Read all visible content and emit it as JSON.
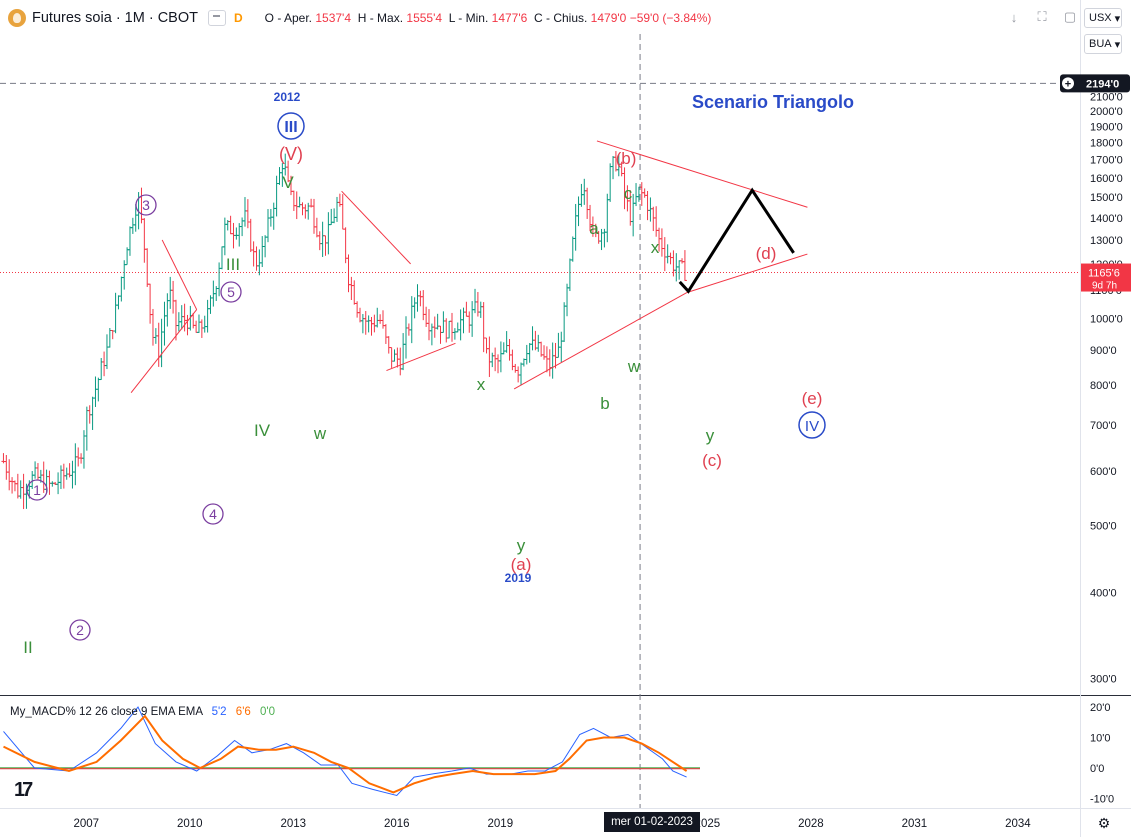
{
  "header": {
    "symbol": "Futures soia · 1M · CBOT",
    "badge_d": "D",
    "ohlc": {
      "open_label": "O - Aper.",
      "open": "1537'4",
      "high_label": "H - Max.",
      "high": "1555'4",
      "low_label": "L - Min.",
      "low": "1477'6",
      "close_label": "C - Chius.",
      "close": "1479'0",
      "change": "−59'0 (−3.84%)"
    },
    "currency": "USX",
    "unit": "BUA"
  },
  "chart_data": {
    "type": "ohlc",
    "title": "Scenario Triangolo",
    "main_chart": {
      "y_tick_labels": [
        "300'0",
        "400'0",
        "500'0",
        "600'0",
        "700'0",
        "800'0",
        "900'0",
        "1000'0",
        "1100'0",
        "1200'0",
        "1300'0",
        "1400'0",
        "1500'0",
        "1600'0",
        "1700'0",
        "1800'0",
        "1900'0",
        "2000'0",
        "2100'0"
      ],
      "price_scale": "log",
      "ylim": [
        300,
        2194
      ],
      "x_tick_labels": [
        "2007",
        "2010",
        "2013",
        "2016",
        "2019",
        "2022",
        "2025",
        "2028",
        "2031",
        "2034"
      ],
      "xlim_years": [
        2004.5,
        2035.8
      ],
      "crosshair_price": "2194'0",
      "crosshair_date": "mer 01-02-2023",
      "last_price": "1165'6",
      "countdown": "9d 7h",
      "series_monthly_approx": [
        [
          2004.6,
          620
        ],
        [
          2005.0,
          560
        ],
        [
          2005.5,
          590
        ],
        [
          2006.0,
          570
        ],
        [
          2006.5,
          600
        ],
        [
          2006.8,
          620
        ],
        [
          2007.0,
          720
        ],
        [
          2007.3,
          800
        ],
        [
          2007.6,
          900
        ],
        [
          2007.9,
          1050
        ],
        [
          2008.2,
          1300
        ],
        [
          2008.5,
          1500
        ],
        [
          2008.7,
          1250
        ],
        [
          2008.9,
          950
        ],
        [
          2009.1,
          900
        ],
        [
          2009.4,
          1100
        ],
        [
          2009.6,
          980
        ],
        [
          2009.9,
          1000
        ],
        [
          2010.2,
          950
        ],
        [
          2010.5,
          1000
        ],
        [
          2010.8,
          1150
        ],
        [
          2011.0,
          1350
        ],
        [
          2011.3,
          1350
        ],
        [
          2011.6,
          1400
        ],
        [
          2011.9,
          1200
        ],
        [
          2012.1,
          1250
        ],
        [
          2012.4,
          1450
        ],
        [
          2012.7,
          1700
        ],
        [
          2012.9,
          1500
        ],
        [
          2013.2,
          1450
        ],
        [
          2013.5,
          1450
        ],
        [
          2013.8,
          1300
        ],
        [
          2014.0,
          1320
        ],
        [
          2014.3,
          1480
        ],
        [
          2014.6,
          1150
        ],
        [
          2014.9,
          1020
        ],
        [
          2015.2,
          980
        ],
        [
          2015.5,
          1000
        ],
        [
          2015.8,
          880
        ],
        [
          2016.1,
          870
        ],
        [
          2016.4,
          1000
        ],
        [
          2016.6,
          1100
        ],
        [
          2016.9,
          990
        ],
        [
          2017.2,
          980
        ],
        [
          2017.5,
          960
        ],
        [
          2017.8,
          990
        ],
        [
          2018.1,
          1000
        ],
        [
          2018.4,
          1050
        ],
        [
          2018.6,
          880
        ],
        [
          2018.9,
          860
        ],
        [
          2019.2,
          900
        ],
        [
          2019.5,
          840
        ],
        [
          2019.8,
          920
        ],
        [
          2020.1,
          900
        ],
        [
          2020.4,
          850
        ],
        [
          2020.7,
          900
        ],
        [
          2020.9,
          1050
        ],
        [
          2021.2,
          1400
        ],
        [
          2021.4,
          1600
        ],
        [
          2021.7,
          1300
        ],
        [
          2022.0,
          1350
        ],
        [
          2022.2,
          1650
        ],
        [
          2022.4,
          1700
        ],
        [
          2022.6,
          1500
        ],
        [
          2022.8,
          1400
        ],
        [
          2023.0,
          1530
        ],
        [
          2023.2,
          1500
        ],
        [
          2023.4,
          1400
        ],
        [
          2023.6,
          1300
        ],
        [
          2023.8,
          1250
        ],
        [
          2024.0,
          1200
        ],
        [
          2024.2,
          1180
        ],
        [
          2024.4,
          1166
        ]
      ]
    },
    "annotations": {
      "scenario_title": "Scenario Triangolo",
      "year_2012": "2012",
      "year_2019": "2019",
      "roman_circle_III": "III",
      "roman_circle_IV": "IV",
      "red_V": "(V)",
      "green_V": "V",
      "green_III": "III",
      "green_IV": "IV",
      "green_II": "II",
      "circle_1": "1",
      "circle_2": "2",
      "circle_3": "3",
      "circle_4": "4",
      "circle_5": "5",
      "w_2014": "w",
      "x_2018": "x",
      "y_2019": "y",
      "a_paren": "(a)",
      "b_paren": "(b)",
      "c_paren": "(c)",
      "d_paren": "(d)",
      "e_paren": "(e)",
      "a_small": "a",
      "b_small": "b",
      "c_small": "c",
      "x_small": "x",
      "w_small": "w",
      "y_small": "y"
    },
    "macd": {
      "label": "My_MACD% 12 26 close 9 EMA EMA",
      "value_blue": "5'2",
      "value_orange": "6'6",
      "value_green": "0'0",
      "y_tick_labels": [
        "20'0",
        "10'0",
        "0'0",
        "-10'0"
      ],
      "ylim": [
        -11,
        22
      ],
      "zero_line": 0,
      "macd_line": [
        [
          2004.6,
          12
        ],
        [
          2005.5,
          0
        ],
        [
          2006.5,
          -1
        ],
        [
          2007.3,
          5
        ],
        [
          2008.0,
          13
        ],
        [
          2008.5,
          20
        ],
        [
          2009.0,
          8
        ],
        [
          2009.6,
          2
        ],
        [
          2010.2,
          -1
        ],
        [
          2010.8,
          4
        ],
        [
          2011.3,
          9
        ],
        [
          2011.8,
          5
        ],
        [
          2012.3,
          6
        ],
        [
          2012.8,
          8
        ],
        [
          2013.3,
          5
        ],
        [
          2013.8,
          1
        ],
        [
          2014.3,
          1
        ],
        [
          2014.7,
          -5
        ],
        [
          2015.3,
          -7
        ],
        [
          2016.0,
          -9
        ],
        [
          2016.5,
          -3
        ],
        [
          2017.0,
          -2
        ],
        [
          2017.6,
          -1
        ],
        [
          2018.1,
          0
        ],
        [
          2018.6,
          -2
        ],
        [
          2019.3,
          -2
        ],
        [
          2019.8,
          -1
        ],
        [
          2020.3,
          -1
        ],
        [
          2020.8,
          2
        ],
        [
          2021.3,
          11
        ],
        [
          2021.7,
          13
        ],
        [
          2022.2,
          10
        ],
        [
          2022.7,
          11
        ],
        [
          2023.2,
          7
        ],
        [
          2023.7,
          3
        ],
        [
          2024.0,
          -1
        ],
        [
          2024.4,
          -3
        ]
      ],
      "signal_line": [
        [
          2004.6,
          7
        ],
        [
          2005.5,
          2
        ],
        [
          2006.5,
          -1
        ],
        [
          2007.3,
          2
        ],
        [
          2008.0,
          9
        ],
        [
          2008.7,
          17
        ],
        [
          2009.2,
          9
        ],
        [
          2009.8,
          3
        ],
        [
          2010.3,
          0
        ],
        [
          2010.9,
          3
        ],
        [
          2011.4,
          7
        ],
        [
          2012.0,
          6
        ],
        [
          2012.5,
          6
        ],
        [
          2013.0,
          7
        ],
        [
          2013.6,
          5
        ],
        [
          2014.1,
          2
        ],
        [
          2014.6,
          0
        ],
        [
          2015.2,
          -5
        ],
        [
          2015.9,
          -8
        ],
        [
          2016.5,
          -5
        ],
        [
          2017.1,
          -3
        ],
        [
          2017.6,
          -2
        ],
        [
          2018.2,
          -1
        ],
        [
          2018.8,
          -2
        ],
        [
          2019.4,
          -2
        ],
        [
          2020.0,
          -2
        ],
        [
          2020.6,
          -1
        ],
        [
          2021.0,
          3
        ],
        [
          2021.5,
          9
        ],
        [
          2022.0,
          10
        ],
        [
          2022.6,
          10
        ],
        [
          2023.1,
          8
        ],
        [
          2023.6,
          5
        ],
        [
          2024.0,
          2
        ],
        [
          2024.4,
          -1
        ]
      ]
    }
  }
}
